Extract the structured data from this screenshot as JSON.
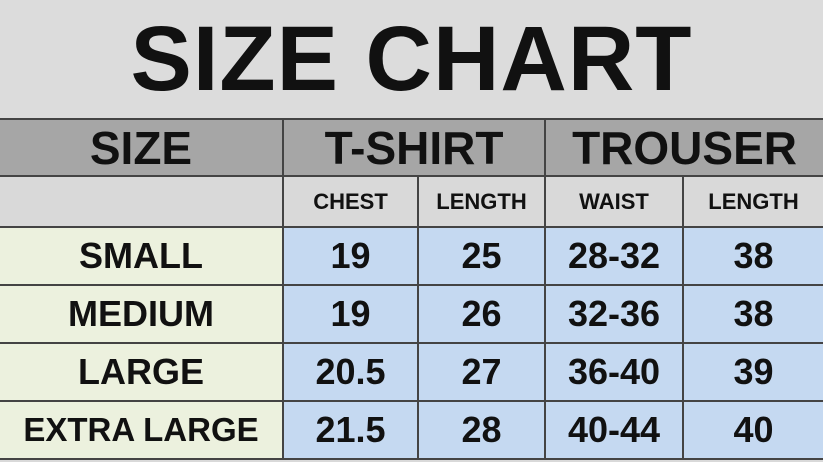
{
  "title": "SIZE CHART",
  "header": {
    "size": "SIZE",
    "tshirt": "T-SHIRT",
    "trouser": "TROUSER"
  },
  "subheader": [
    "CHEST",
    "LENGTH",
    "WAIST",
    "LENGTH"
  ],
  "rows": [
    {
      "size": "SMALL",
      "chest": "19",
      "tshirt_length": "25",
      "waist": "28-32",
      "trouser_length": "38"
    },
    {
      "size": "MEDIUM",
      "chest": "19",
      "tshirt_length": "26",
      "waist": "32-36",
      "trouser_length": "38"
    },
    {
      "size": "LARGE",
      "chest": "20.5",
      "tshirt_length": "27",
      "waist": "36-40",
      "trouser_length": "39"
    },
    {
      "size": "EXTRA LARGE",
      "chest": "21.5",
      "tshirt_length": "28",
      "waist": "40-44",
      "trouser_length": "40"
    }
  ],
  "colors": {
    "header": "#a6a6a6",
    "size_cells": "#ecf1de",
    "value_cells": "#c5d9f1",
    "background": "#d9d9d9"
  }
}
